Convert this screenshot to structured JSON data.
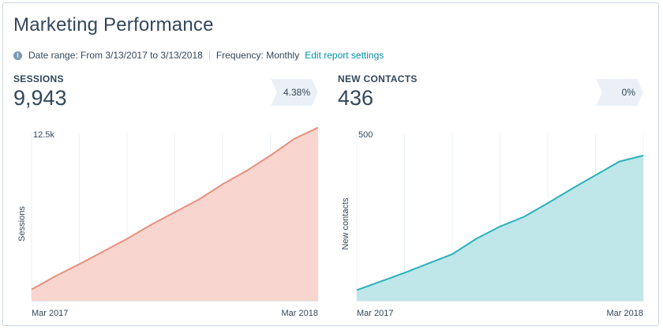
{
  "title": "Marketing Performance",
  "meta": {
    "info_icon": "i",
    "date_range": "Date range: From 3/13/2017 to 3/13/2018",
    "frequency": "Frequency: Monthly",
    "edit_link": "Edit report settings"
  },
  "sessions": {
    "label": "SESSIONS",
    "value": "9,943",
    "change": "4.38%"
  },
  "contacts": {
    "label": "NEW CONTACTS",
    "value": "436",
    "change": "0%"
  },
  "chart_data": [
    {
      "type": "area",
      "ylabel": "Sessions",
      "y_top_label": "12.5k",
      "ylim": [
        0,
        12500
      ],
      "x_labels": [
        "Mar 2017",
        "Mar 2018"
      ],
      "values": [
        850,
        1850,
        2750,
        3700,
        4650,
        5700,
        6650,
        7600,
        8750,
        9750,
        10900,
        12150,
        13000
      ],
      "color_fill": "#f8d5cf",
      "color_line": "#e8907e",
      "grid": "vertical"
    },
    {
      "type": "area",
      "ylabel": "New contacts",
      "y_top_label": "500",
      "ylim": [
        0,
        500
      ],
      "x_labels": [
        "Mar 2017",
        "Mar 2018"
      ],
      "values": [
        32,
        58,
        84,
        112,
        140,
        186,
        223,
        252,
        293,
        336,
        377,
        418,
        436
      ],
      "color_fill": "#bfe6e8",
      "color_line": "#2bb1ba",
      "grid": "vertical"
    }
  ]
}
